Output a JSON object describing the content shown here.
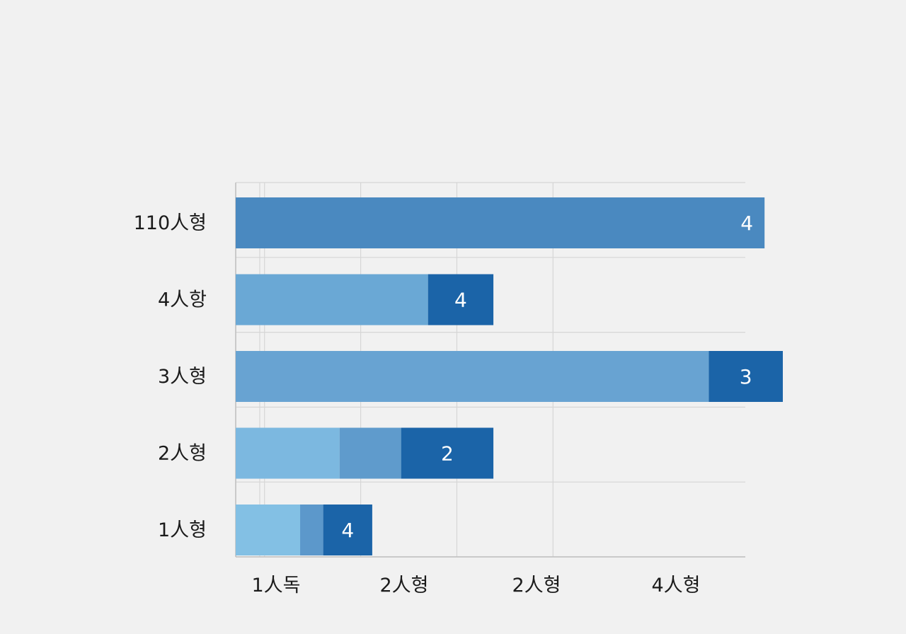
{
  "chart_data": {
    "type": "bar",
    "orientation": "horizontal",
    "stacked": true,
    "title": "",
    "xlabel": "",
    "ylabel": "",
    "categories": [
      "110人형",
      "4人항",
      "3人형",
      "2人형",
      "1人형"
    ],
    "x_tick_labels": [
      "1人독",
      "2人형",
      "2人형",
      "4人형"
    ],
    "xlim": [
      0,
      5.3
    ],
    "x_ticks": [
      0.3,
      1.3,
      2.3,
      3.3
    ],
    "grid": true,
    "legend": "none",
    "segments": [
      [
        {
          "value": 5.5,
          "color": "#4a89c0"
        }
      ],
      [
        {
          "value": 2.0,
          "color": "#6aa8d5"
        },
        {
          "value": 0.68,
          "color": "#1b64a8"
        }
      ],
      [
        {
          "value": 4.92,
          "color": "#68a3d2"
        },
        {
          "value": 0.77,
          "color": "#1b64a8"
        }
      ],
      [
        {
          "value": 1.08,
          "color": "#7cb8e0"
        },
        {
          "value": 0.64,
          "color": "#5f9bcc"
        },
        {
          "value": 0.96,
          "color": "#1b64a8"
        }
      ],
      [
        {
          "value": 0.67,
          "color": "#83c0e4"
        },
        {
          "value": 0.24,
          "color": "#5c98cb"
        },
        {
          "value": 0.51,
          "color": "#1b64a8"
        }
      ]
    ],
    "bar_labels": [
      "4",
      "4",
      "3",
      "2",
      "4"
    ]
  }
}
